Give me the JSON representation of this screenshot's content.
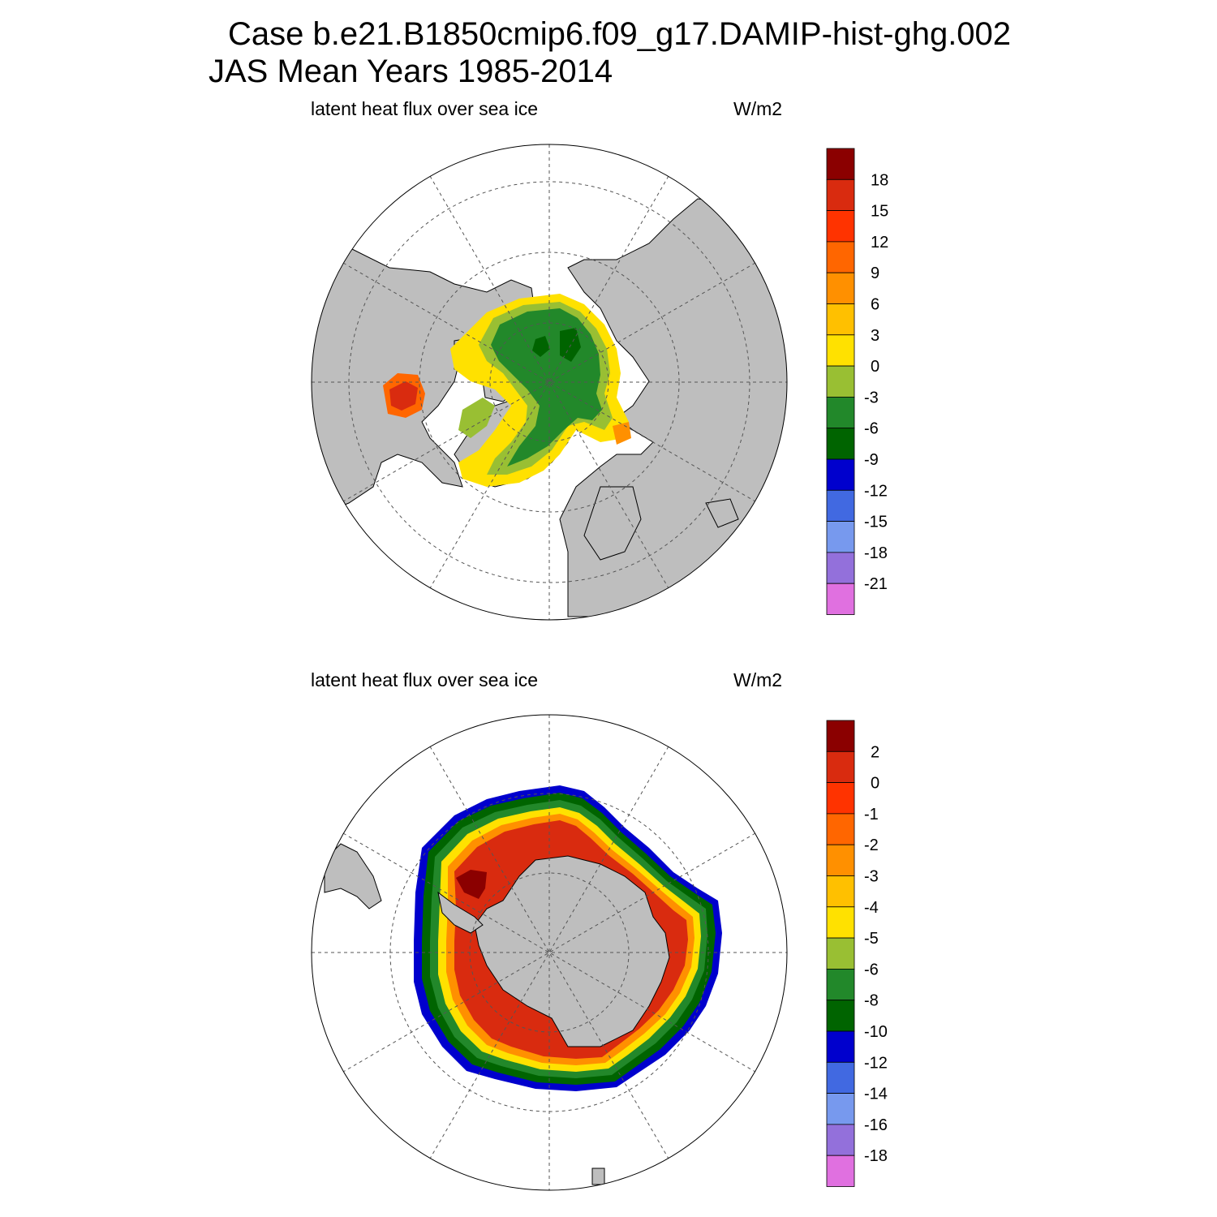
{
  "figure": {
    "title_line1": "Case b.e21.B1850cmip6.f09_g17.DAMIP-hist-ghg.002",
    "title_line2": "JAS Mean   Years 1985-2014"
  },
  "panels": [
    {
      "hemisphere": "north",
      "variable_label": "latent heat flux over sea ice",
      "units_label": "W/m2",
      "colorbar": {
        "labels": [
          "18",
          "15",
          "12",
          "9",
          "6",
          "3",
          "0",
          "-3",
          "-6",
          "-9",
          "-12",
          "-15",
          "-18",
          "-21"
        ],
        "colors": [
          "#8b0000",
          "#d92b0f",
          "#ff3300",
          "#ff6600",
          "#ff9000",
          "#ffc000",
          "#ffe100",
          "#99bf33",
          "#22882a",
          "#006400",
          "#0000cd",
          "#4169e1",
          "#7799ee",
          "#9370db",
          "#e070e0"
        ]
      }
    },
    {
      "hemisphere": "south",
      "variable_label": "latent heat flux over sea ice",
      "units_label": "W/m2",
      "colorbar": {
        "labels": [
          "2",
          "0",
          "-1",
          "-2",
          "-3",
          "-4",
          "-5",
          "-6",
          "-8",
          "-10",
          "-12",
          "-14",
          "-16",
          "-18"
        ],
        "colors": [
          "#8b0000",
          "#d92b0f",
          "#ff3300",
          "#ff6600",
          "#ff9000",
          "#ffc000",
          "#ffe100",
          "#99bf33",
          "#22882a",
          "#006400",
          "#0000cd",
          "#4169e1",
          "#7799ee",
          "#9370db",
          "#e070e0"
        ]
      }
    }
  ],
  "colors": {
    "land": "#bebebe",
    "ocean": "#ffffff",
    "grid": "#555555"
  }
}
